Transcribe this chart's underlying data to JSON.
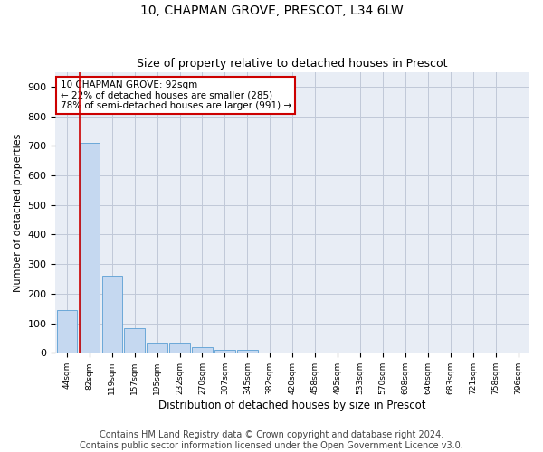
{
  "title1": "10, CHAPMAN GROVE, PRESCOT, L34 6LW",
  "title2": "Size of property relative to detached houses in Prescot",
  "xlabel": "Distribution of detached houses by size in Prescot",
  "ylabel": "Number of detached properties",
  "bin_labels": [
    "44sqm",
    "82sqm",
    "119sqm",
    "157sqm",
    "195sqm",
    "232sqm",
    "270sqm",
    "307sqm",
    "345sqm",
    "382sqm",
    "420sqm",
    "458sqm",
    "495sqm",
    "533sqm",
    "570sqm",
    "608sqm",
    "646sqm",
    "683sqm",
    "721sqm",
    "758sqm",
    "796sqm"
  ],
  "bar_values": [
    145,
    710,
    262,
    85,
    35,
    35,
    20,
    10,
    10,
    0,
    0,
    0,
    0,
    0,
    0,
    0,
    0,
    0,
    0,
    0,
    0
  ],
  "bar_color": "#c5d8f0",
  "bar_edge_color": "#5a9fd4",
  "annotation_text": "10 CHAPMAN GROVE: 92sqm\n← 22% of detached houses are smaller (285)\n78% of semi-detached houses are larger (991) →",
  "annotation_box_color": "#ffffff",
  "annotation_box_edge_color": "#cc0000",
  "property_line_color": "#cc0000",
  "ylim": [
    0,
    950
  ],
  "yticks": [
    0,
    100,
    200,
    300,
    400,
    500,
    600,
    700,
    800,
    900
  ],
  "grid_color": "#c0c8d8",
  "bg_color": "#e8edf5",
  "footer1": "Contains HM Land Registry data © Crown copyright and database right 2024.",
  "footer2": "Contains public sector information licensed under the Open Government Licence v3.0.",
  "title_fontsize": 10,
  "subtitle_fontsize": 9,
  "footer_fontsize": 7
}
